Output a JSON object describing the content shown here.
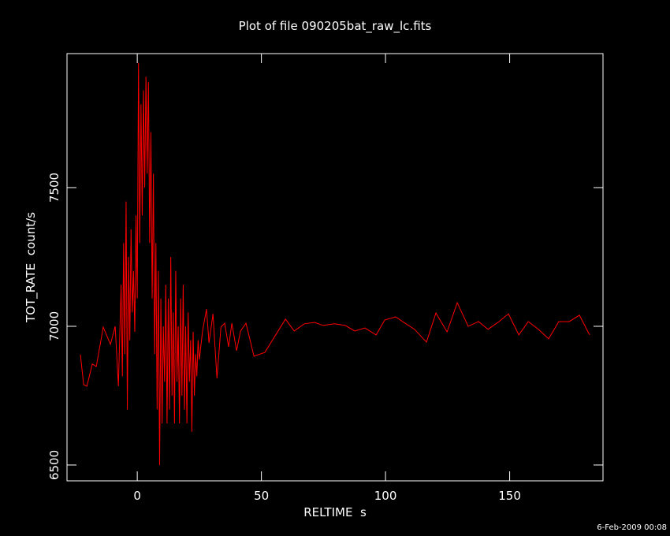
{
  "chart_data": {
    "type": "line",
    "title": "Plot of file 090205bat_raw_lc.fits",
    "xlabel": "RELTIME  s",
    "ylabel": "TOT_RATE  count/s",
    "footer": "6-Feb-2009 00:08",
    "xlim": [
      -28.3,
      187.6
    ],
    "ylim": [
      6443,
      7983
    ],
    "xticks": [
      0,
      50,
      100,
      150
    ],
    "yticks": [
      6500,
      7000,
      7500
    ],
    "series": [
      {
        "name": "TOT_RATE",
        "color": "#ff0000",
        "x": [
          -22.9,
          -21.6,
          -20.3,
          -18.1,
          -16.5,
          -13.7,
          -10.8,
          -8.9,
          -7.6,
          -6.5,
          -6,
          -5.5,
          -5,
          -4.5,
          -4,
          -3.5,
          -3,
          -2.5,
          -2,
          -1.5,
          -1,
          -0.5,
          0,
          0.5,
          1,
          1.5,
          2,
          2.5,
          3,
          3.5,
          4,
          4.5,
          5,
          5.5,
          6,
          6.5,
          7,
          7.5,
          8,
          8.5,
          9,
          9.5,
          10,
          10.5,
          11,
          11.5,
          12,
          12.5,
          13,
          13.5,
          14,
          14.5,
          15,
          15.5,
          16,
          16.5,
          17,
          17.5,
          18,
          18.5,
          19,
          19.5,
          20,
          20.5,
          21,
          21.5,
          22,
          22.5,
          23,
          23.5,
          24,
          24.5,
          25,
          26.3,
          27.9,
          28.9,
          30.5,
          32.1,
          33.7,
          35.2,
          36.8,
          38.1,
          40,
          41.6,
          43.8,
          47,
          51.4,
          59.7,
          63.2,
          67.3,
          71.4,
          74.9,
          79.4,
          83.8,
          87.6,
          91.7,
          96.2,
          99.7,
          104.1,
          107.9,
          111.7,
          116.5,
          120.3,
          124.8,
          128.9,
          133.3,
          137.5,
          141.3,
          145.7,
          149.5,
          153.7,
          157.5,
          161.6,
          165.7,
          169.8,
          174,
          178.1,
          182.2
        ],
        "values": [
          6898,
          6790,
          6784,
          6864,
          6855,
          6997,
          6935,
          7000,
          6784,
          7150,
          6820,
          7300,
          6900,
          7450,
          6700,
          7250,
          6950,
          7350,
          7050,
          7200,
          6980,
          7400,
          7100,
          7950,
          7300,
          7800,
          7400,
          7850,
          7500,
          7900,
          7550,
          7880,
          7300,
          7700,
          7100,
          7550,
          6900,
          7300,
          6700,
          7200,
          6500,
          7100,
          6650,
          7000,
          6800,
          7150,
          6650,
          7100,
          6700,
          7250,
          6750,
          7050,
          6650,
          7200,
          6800,
          7000,
          6650,
          7100,
          6750,
          7150,
          6700,
          7000,
          6650,
          7050,
          6800,
          6950,
          6620,
          6980,
          6750,
          6900,
          6820,
          6950,
          6880,
          6983,
          7062,
          6940,
          7045,
          6812,
          6997,
          7011,
          6926,
          7011,
          6912,
          6983,
          7011,
          6892,
          6906,
          7026,
          6983,
          7009,
          7014,
          7003,
          7009,
          7003,
          6983,
          6994,
          6969,
          7023,
          7034,
          7011,
          6989,
          6943,
          7048,
          6980,
          7085,
          7000,
          7017,
          6989,
          7017,
          7045,
          6969,
          7017,
          6989,
          6955,
          7017,
          7017,
          7040,
          6969
        ]
      }
    ]
  }
}
